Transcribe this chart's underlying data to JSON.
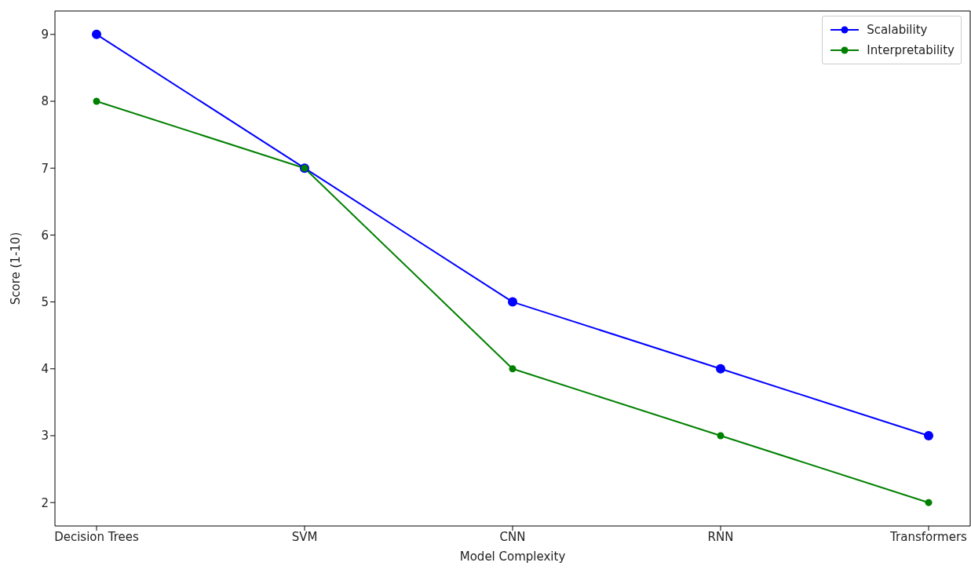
{
  "chart_data": {
    "type": "line",
    "xlabel": "Model Complexity",
    "ylabel": "Score (1-10)",
    "categories": [
      "Decision Trees",
      "SVM",
      "CNN",
      "RNN",
      "Transformers"
    ],
    "series": [
      {
        "name": "Scalability",
        "color": "#0000ff",
        "values": [
          9,
          7,
          5,
          4,
          3
        ]
      },
      {
        "name": "Interpretability",
        "color": "#008000",
        "values": [
          8,
          7,
          4,
          3,
          2
        ]
      }
    ],
    "ylim": [
      1.65,
      9.35
    ],
    "yticks": [
      2,
      3,
      4,
      5,
      6,
      7,
      8,
      9
    ],
    "legend": "top right",
    "marker": "circle",
    "line_style": "solid"
  }
}
